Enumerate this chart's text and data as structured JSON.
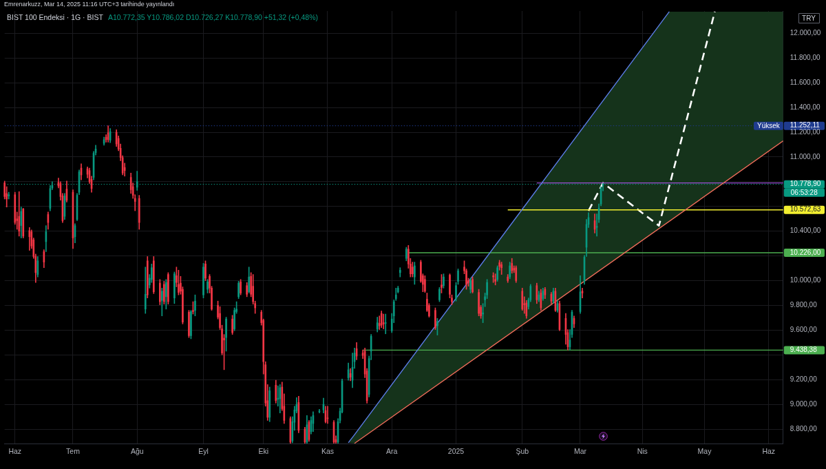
{
  "chart_data": {
    "type": "candlestick",
    "title": "BIST 100 Endeksi · 1G · BIST",
    "subtitle": "A10.772,35 Y10.786,02 D10.726,27 K10.778,90 +51,32 (+0,48%)",
    "ylabel": "TRY",
    "annotations": [
      "Emrenarkuzz, Mar 14, 2025 11:16 UTC+3 tarihinde yayınlandı",
      "06:53:28"
    ],
    "x": [
      "2024-05-29",
      "2024-05-30",
      "2024-05-31",
      "2024-06-03",
      "2024-06-04",
      "2024-06-05",
      "2024-06-06",
      "2024-06-07",
      "2024-06-10",
      "2024-06-11",
      "2024-06-12",
      "2024-06-13",
      "2024-06-14",
      "2024-06-17",
      "2024-06-18",
      "2024-06-19",
      "2024-06-20",
      "2024-06-21",
      "2024-06-24",
      "2024-06-25",
      "2024-06-26",
      "2024-06-27",
      "2024-06-28",
      "2024-07-01",
      "2024-07-02",
      "2024-07-03",
      "2024-07-04",
      "2024-07-05",
      "2024-07-08",
      "2024-07-09",
      "2024-07-10",
      "2024-07-11",
      "2024-07-12",
      "2024-07-16",
      "2024-07-17",
      "2024-07-18",
      "2024-07-19",
      "2024-07-22",
      "2024-07-23",
      "2024-07-24",
      "2024-07-25",
      "2024-07-26",
      "2024-07-29",
      "2024-07-30",
      "2024-07-31",
      "2024-08-01",
      "2024-08-02",
      "2024-08-05",
      "2024-08-06",
      "2024-08-07",
      "2024-08-08",
      "2024-08-09",
      "2024-08-12",
      "2024-08-13",
      "2024-08-14",
      "2024-08-15",
      "2024-08-16",
      "2024-08-19",
      "2024-08-20",
      "2024-08-21",
      "2024-08-22",
      "2024-08-23",
      "2024-08-26",
      "2024-08-27",
      "2024-08-28",
      "2024-08-29",
      "2024-09-02",
      "2024-09-03",
      "2024-09-04",
      "2024-09-05",
      "2024-09-06",
      "2024-09-09",
      "2024-09-10",
      "2024-09-11",
      "2024-09-12",
      "2024-09-13",
      "2024-09-16",
      "2024-09-17",
      "2024-09-18",
      "2024-09-19",
      "2024-09-20",
      "2024-09-23",
      "2024-09-24",
      "2024-09-25",
      "2024-09-26",
      "2024-09-27",
      "2024-09-30",
      "2024-10-01",
      "2024-10-02",
      "2024-10-03",
      "2024-10-04",
      "2024-10-07",
      "2024-10-08",
      "2024-10-09",
      "2024-10-10",
      "2024-10-11",
      "2024-10-14",
      "2024-10-15",
      "2024-10-16",
      "2024-10-17",
      "2024-10-18",
      "2024-10-21",
      "2024-10-22",
      "2024-10-23",
      "2024-10-24",
      "2024-10-25",
      "2024-10-28",
      "2024-10-30",
      "2024-10-31",
      "2024-11-01",
      "2024-11-04",
      "2024-11-05",
      "2024-11-06",
      "2024-11-07",
      "2024-11-08",
      "2024-11-11",
      "2024-11-12",
      "2024-11-13",
      "2024-11-14",
      "2024-11-15",
      "2024-11-18",
      "2024-11-19",
      "2024-11-20",
      "2024-11-21",
      "2024-11-22",
      "2024-11-25",
      "2024-11-26",
      "2024-11-27",
      "2024-11-28",
      "2024-11-29",
      "2024-12-02",
      "2024-12-03",
      "2024-12-04",
      "2024-12-05",
      "2024-12-06",
      "2024-12-09",
      "2024-12-10",
      "2024-12-11",
      "2024-12-12",
      "2024-12-13",
      "2024-12-16",
      "2024-12-17",
      "2024-12-18",
      "2024-12-19",
      "2024-12-20",
      "2024-12-23",
      "2024-12-24",
      "2024-12-25",
      "2024-12-26",
      "2024-12-27",
      "2024-12-30",
      "2024-12-31",
      "2025-01-02",
      "2025-01-03",
      "2025-01-06",
      "2025-01-07",
      "2025-01-08",
      "2025-01-09",
      "2025-01-10",
      "2025-01-13",
      "2025-01-14",
      "2025-01-15",
      "2025-01-16",
      "2025-01-17",
      "2025-01-20",
      "2025-01-21",
      "2025-01-22",
      "2025-01-23",
      "2025-01-24",
      "2025-01-27",
      "2025-01-28",
      "2025-01-29",
      "2025-01-30",
      "2025-01-31",
      "2025-02-03",
      "2025-02-04",
      "2025-02-05",
      "2025-02-06",
      "2025-02-07",
      "2025-02-10",
      "2025-02-11",
      "2025-02-12",
      "2025-02-13",
      "2025-02-14",
      "2025-02-17",
      "2025-02-18",
      "2025-02-19",
      "2025-02-20",
      "2025-02-21",
      "2025-02-24",
      "2025-02-25",
      "2025-02-26",
      "2025-02-27",
      "2025-02-28",
      "2025-03-03",
      "2025-03-04",
      "2025-03-05",
      "2025-03-06",
      "2025-03-07",
      "2025-03-10",
      "2025-03-11",
      "2025-03-12",
      "2025-03-13",
      "2025-03-14"
    ],
    "ohlc": [
      [
        10790,
        10805,
        10660,
        10680
      ],
      [
        10705,
        10760,
        10595,
        10660
      ],
      [
        10685,
        10715,
        10660,
        10695
      ],
      [
        10695,
        10715,
        10455,
        10470
      ],
      [
        10500,
        10555,
        10415,
        10485
      ],
      [
        10520,
        10720,
        10360,
        10400
      ],
      [
        10445,
        10595,
        10345,
        10560
      ],
      [
        10580,
        10585,
        10345,
        10360
      ],
      [
        10405,
        10430,
        10245,
        10355
      ],
      [
        10395,
        10410,
        10260,
        10280
      ],
      [
        10330,
        10345,
        10180,
        10195
      ],
      [
        10195,
        10215,
        9985,
        10065
      ],
      [
        10050,
        10195,
        10030,
        10160
      ],
      [
        10235,
        10250,
        10105,
        10150
      ],
      [
        10315,
        10445,
        10235,
        10395
      ],
      [
        10535,
        10555,
        10415,
        10470
      ],
      [
        10585,
        10770,
        10565,
        10745
      ],
      [
        10750,
        10800,
        10735,
        10770
      ],
      [
        10795,
        10830,
        10750,
        10765
      ],
      [
        10785,
        10800,
        10650,
        10680
      ],
      [
        10685,
        10705,
        10470,
        10485
      ],
      [
        10520,
        10705,
        10495,
        10685
      ],
      [
        10740,
        10805,
        10635,
        10650
      ],
      [
        10715,
        10735,
        10260,
        10345
      ],
      [
        10355,
        10460,
        10305,
        10445
      ],
      [
        10495,
        10705,
        10485,
        10690
      ],
      [
        10715,
        10895,
        10695,
        10880
      ],
      [
        10910,
        10945,
        10815,
        10855
      ],
      [
        10905,
        10920,
        10830,
        10860
      ],
      [
        10890,
        10910,
        10785,
        10800
      ],
      [
        10820,
        10845,
        10715,
        10745
      ],
      [
        10835,
        11045,
        10815,
        11030
      ],
      [
        11035,
        11095,
        11015,
        11065
      ],
      [
        11110,
        11160,
        11095,
        11140
      ],
      [
        11160,
        11180,
        11120,
        11140
      ],
      [
        11195,
        11252.11,
        11120,
        11140
      ],
      [
        11135,
        11230,
        11115,
        11205
      ],
      [
        11200,
        11220,
        11085,
        11105
      ],
      [
        11150,
        11170,
        11050,
        11065
      ],
      [
        11070,
        11105,
        10970,
        10995
      ],
      [
        10995,
        11010,
        10855,
        10870
      ],
      [
        10915,
        10950,
        10845,
        10890
      ],
      [
        10835,
        10870,
        10705,
        10735
      ],
      [
        10760,
        10790,
        10665,
        10690
      ],
      [
        10665,
        10695,
        10565,
        10640
      ],
      [
        10755,
        10885,
        10730,
        10800
      ],
      [
        10665,
        10690,
        10415,
        10470
      ],
      [
        9770,
        10110,
        9735,
        9890
      ],
      [
        10160,
        10195,
        9860,
        9885
      ],
      [
        9965,
        10050,
        9940,
        10020
      ],
      [
        10010,
        10135,
        9985,
        10105
      ],
      [
        10160,
        10195,
        9895,
        9910
      ],
      [
        9980,
        10010,
        9805,
        9830
      ],
      [
        9840,
        9940,
        9715,
        9915
      ],
      [
        9970,
        9995,
        9810,
        9830
      ],
      [
        9870,
        10010,
        9770,
        9985
      ],
      [
        10050,
        10065,
        9810,
        9830
      ],
      [
        9860,
        10070,
        9815,
        10055
      ],
      [
        10040,
        10110,
        9950,
        9985
      ],
      [
        9970,
        10085,
        9885,
        9905
      ],
      [
        9980,
        10035,
        9890,
        9915
      ],
      [
        9930,
        9950,
        9650,
        9665
      ],
      [
        9745,
        9760,
        9540,
        9555
      ],
      [
        9555,
        9760,
        9530,
        9750
      ],
      [
        9760,
        9830,
        9730,
        9750
      ],
      [
        9760,
        9885,
        9715,
        9835
      ],
      [
        9885,
        10140,
        9860,
        10110
      ],
      [
        10135,
        10160,
        10000,
        10020
      ],
      [
        9930,
        10010,
        9900,
        9990
      ],
      [
        10035,
        10050,
        9900,
        9940
      ],
      [
        9940,
        9955,
        9760,
        9770
      ],
      [
        9800,
        9835,
        9690,
        9705
      ],
      [
        9735,
        9790,
        9605,
        9620
      ],
      [
        9610,
        9640,
        9400,
        9415
      ],
      [
        9535,
        9565,
        9280,
        9520
      ],
      [
        9540,
        9705,
        9430,
        9690
      ],
      [
        9690,
        9720,
        9565,
        9580
      ],
      [
        9610,
        9780,
        9595,
        9760
      ],
      [
        9750,
        9830,
        9735,
        9770
      ],
      [
        9870,
        9995,
        9855,
        9980
      ],
      [
        9990,
        10010,
        9885,
        9900
      ],
      [
        9960,
        9985,
        9870,
        9890
      ],
      [
        9910,
        10110,
        9900,
        10030
      ],
      [
        10035,
        10065,
        9870,
        9890
      ],
      [
        9955,
        10050,
        9810,
        9830
      ],
      [
        9815,
        9835,
        9735,
        9780
      ],
      [
        9745,
        9760,
        9640,
        9660
      ],
      [
        9680,
        9690,
        9245,
        9345
      ],
      [
        9320,
        9345,
        8985,
        9010
      ],
      [
        9030,
        9160,
        8870,
        8895
      ],
      [
        8895,
        9140,
        8860,
        9110
      ],
      [
        9155,
        9195,
        9010,
        9030
      ],
      [
        9040,
        9150,
        8985,
        9050
      ],
      [
        9045,
        9160,
        8930,
        9135
      ],
      [
        9140,
        9180,
        8950,
        8965
      ],
      [
        8985,
        9085,
        8845,
        8870
      ],
      [
        8885,
        8900,
        8685,
        8695
      ],
      [
        8705,
        8900,
        8690,
        8860
      ],
      [
        8855,
        8985,
        8790,
        8955
      ],
      [
        8945,
        9055,
        8930,
        9000
      ],
      [
        9015,
        9065,
        8770,
        8790
      ],
      [
        8800,
        8815,
        8685,
        8695
      ],
      [
        8695,
        8910,
        8685,
        8835
      ],
      [
        8855,
        8870,
        8700,
        8715
      ],
      [
        8780,
        8900,
        8760,
        8870
      ],
      [
        8845,
        8940,
        8780,
        8910
      ],
      [
        8940,
        8960,
        8930,
        8945
      ],
      [
        8955,
        9050,
        8930,
        9000
      ],
      [
        8950,
        8985,
        8850,
        8860
      ],
      [
        8890,
        8985,
        8845,
        8885
      ],
      [
        8855,
        8870,
        8685,
        8695
      ],
      [
        8715,
        8745,
        8685,
        8695
      ],
      [
        8695,
        8885,
        8685,
        8860
      ],
      [
        8870,
        8970,
        8850,
        8945
      ],
      [
        8940,
        9205,
        8930,
        9190
      ],
      [
        9215,
        9335,
        9195,
        9280
      ],
      [
        9250,
        9290,
        9190,
        9220
      ],
      [
        9195,
        9415,
        9135,
        9300
      ],
      [
        9345,
        9455,
        9290,
        9415
      ],
      [
        9450,
        9500,
        9360,
        9390
      ],
      [
        9415,
        9440,
        9370,
        9395
      ],
      [
        9430,
        9455,
        9215,
        9245
      ],
      [
        9270,
        9290,
        9010,
        9030
      ],
      [
        9080,
        9390,
        9060,
        9370
      ],
      [
        9430,
        9565,
        9360,
        9550
      ],
      [
        9610,
        9705,
        9585,
        9660
      ],
      [
        9655,
        9715,
        9605,
        9635
      ],
      [
        9735,
        9755,
        9620,
        9640
      ],
      [
        9660,
        9730,
        9610,
        9650
      ],
      [
        9655,
        9730,
        9570,
        9660
      ],
      [
        9595,
        9735,
        9580,
        9690
      ],
      [
        9715,
        9845,
        9660,
        9830
      ],
      [
        9855,
        9940,
        9840,
        9885
      ],
      [
        9910,
        9955,
        9900,
        9940
      ],
      [
        10065,
        10105,
        10030,
        10085
      ],
      [
        10180,
        10270,
        10160,
        10255
      ],
      [
        10255,
        10285,
        10100,
        10135
      ],
      [
        10135,
        10180,
        10030,
        10055
      ],
      [
        10110,
        10150,
        10030,
        10055
      ],
      [
        10030,
        10150,
        9970,
        10120
      ],
      [
        10150,
        10165,
        9985,
        9995
      ],
      [
        10040,
        10055,
        9910,
        9970
      ],
      [
        10010,
        10040,
        9905,
        9915
      ],
      [
        9850,
        9900,
        9750,
        9760
      ],
      [
        9800,
        9815,
        9705,
        9715
      ],
      [
        9760,
        9780,
        9605,
        9620
      ],
      [
        9635,
        9695,
        9560,
        9670
      ],
      [
        9845,
        9945,
        9830,
        9930
      ],
      [
        9965,
        10050,
        9900,
        9945
      ],
      [
        9960,
        10055,
        9940,
        10030
      ],
      [
        10045,
        10055,
        9860,
        9890
      ],
      [
        9860,
        9885,
        9805,
        9830
      ],
      [
        9855,
        9985,
        9835,
        9960
      ],
      [
        9995,
        10095,
        9970,
        10080
      ],
      [
        10110,
        10160,
        10055,
        10080
      ],
      [
        10080,
        10095,
        9930,
        9970
      ],
      [
        10000,
        10020,
        9955,
        9985
      ],
      [
        9930,
        10020,
        9900,
        10000
      ],
      [
        10010,
        10030,
        9900,
        9910
      ],
      [
        9905,
        9930,
        9715,
        9735
      ],
      [
        9785,
        9800,
        9695,
        9715
      ],
      [
        9730,
        9815,
        9660,
        9740
      ],
      [
        9845,
        9900,
        9790,
        9870
      ],
      [
        9885,
        10010,
        9855,
        9985
      ],
      [
        10040,
        10065,
        9985,
        10030
      ],
      [
        10010,
        10055,
        9965,
        9995
      ],
      [
        10010,
        10120,
        9995,
        10105
      ],
      [
        10145,
        10165,
        10085,
        10115
      ],
      [
        10130,
        10150,
        10050,
        10105
      ],
      [
        10030,
        10050,
        9985,
        10000
      ],
      [
        10030,
        10150,
        10015,
        10120
      ],
      [
        10140,
        10180,
        10060,
        10080
      ],
      [
        10100,
        10120,
        10065,
        10085
      ],
      [
        10105,
        10120,
        9985,
        10000
      ],
      [
        9915,
        9940,
        9760,
        9770
      ],
      [
        9815,
        9870,
        9735,
        9805
      ],
      [
        9820,
        9840,
        9695,
        9715
      ],
      [
        9790,
        9860,
        9770,
        9845
      ],
      [
        9845,
        9970,
        9830,
        9955
      ],
      [
        9960,
        9980,
        9815,
        9845
      ],
      [
        9845,
        9915,
        9830,
        9885
      ],
      [
        9900,
        9930,
        9760,
        9780
      ],
      [
        9855,
        9940,
        9840,
        9915
      ],
      [
        9930,
        9945,
        9855,
        9885
      ],
      [
        9890,
        9905,
        9815,
        9835
      ],
      [
        9835,
        9940,
        9815,
        9915
      ],
      [
        9915,
        9940,
        9750,
        9760
      ],
      [
        9760,
        9840,
        9745,
        9815
      ],
      [
        9815,
        9835,
        9595,
        9605
      ],
      [
        9695,
        9735,
        9485,
        9565
      ],
      [
        9580,
        9605,
        9440,
        9465
      ],
      [
        9465,
        9605,
        9440,
        9520
      ],
      [
        9565,
        9760,
        9540,
        9745
      ],
      [
        9695,
        9715,
        9620,
        9650
      ],
      [
        9750,
        10040,
        9735,
        9910
      ],
      [
        9915,
        9940,
        9860,
        9900
      ],
      [
        9995,
        10205,
        9970,
        10190
      ],
      [
        10270,
        10495,
        10195,
        10455
      ],
      [
        10455,
        10550,
        10430,
        10510
      ],
      [
        10485,
        10540,
        10385,
        10415
      ],
      [
        10430,
        10540,
        10360,
        10440
      ],
      [
        10495,
        10620,
        10470,
        10585
      ],
      [
        10620,
        10760,
        10605,
        10745
      ],
      [
        10772.35,
        10786.02,
        10726.27,
        10778.9
      ]
    ],
    "colors": [
      "#f23645",
      "#f23645",
      "#089981",
      "#f23645",
      "#f23645",
      "#f23645",
      "#089981",
      "#f23645",
      "#f23645",
      "#f23645",
      "#f23645",
      "#f23645",
      "#089981",
      "#f23645",
      "#089981",
      "#f23645",
      "#089981",
      "#089981",
      "#f23645",
      "#f23645",
      "#f23645",
      "#089981",
      "#f23645",
      "#f23645",
      "#089981",
      "#089981",
      "#089981",
      "#f23645",
      "#f23645",
      "#f23645",
      "#f23645",
      "#089981",
      "#089981",
      "#089981",
      "#f23645",
      "#f23645",
      "#089981",
      "#f23645",
      "#f23645",
      "#f23645",
      "#f23645",
      "#f23645",
      "#f23645",
      "#f23645",
      "#f23645",
      "#089981",
      "#f23645",
      "#089981",
      "#f23645",
      "#089981",
      "#089981",
      "#f23645",
      "#f23645",
      "#089981",
      "#f23645",
      "#089981",
      "#f23645",
      "#089981",
      "#f23645",
      "#f23645",
      "#f23645",
      "#f23645",
      "#f23645",
      "#089981",
      "#f23645",
      "#089981",
      "#089981",
      "#f23645",
      "#089981",
      "#f23645",
      "#f23645",
      "#f23645",
      "#f23645",
      "#f23645",
      "#f23645",
      "#089981",
      "#f23645",
      "#089981",
      "#089981",
      "#089981",
      "#f23645",
      "#f23645",
      "#089981",
      "#f23645",
      "#f23645",
      "#f23645",
      "#f23645",
      "#f23645",
      "#f23645",
      "#f23645",
      "#089981",
      "#f23645",
      "#089981",
      "#089981",
      "#f23645",
      "#f23645",
      "#f23645",
      "#089981",
      "#089981",
      "#089981",
      "#f23645",
      "#f23645",
      "#089981",
      "#f23645",
      "#089981",
      "#089981",
      "#089981",
      "#089981",
      "#f23645",
      "#f23645",
      "#f23645",
      "#f23645",
      "#089981",
      "#089981",
      "#089981",
      "#089981",
      "#f23645",
      "#089981",
      "#089981",
      "#f23645",
      "#f23645",
      "#f23645",
      "#f23645",
      "#089981",
      "#089981",
      "#089981",
      "#f23645",
      "#f23645",
      "#f23645",
      "#089981",
      "#089981",
      "#089981",
      "#089981",
      "#089981",
      "#089981",
      "#089981",
      "#f23645",
      "#f23645",
      "#f23645",
      "#089981",
      "#f23645",
      "#f23645",
      "#f23645",
      "#f23645",
      "#f23645",
      "#f23645",
      "#089981",
      "#089981",
      "#f23645",
      "#089981",
      "#f23645",
      "#f23645",
      "#089981",
      "#089981",
      "#f23645",
      "#f23645",
      "#f23645",
      "#089981",
      "#f23645",
      "#f23645",
      "#f23645",
      "#089981",
      "#089981",
      "#089981",
      "#f23645",
      "#f23645",
      "#089981",
      "#f23645",
      "#f23645",
      "#f23645",
      "#089981",
      "#f23645",
      "#f23645",
      "#f23645",
      "#f23645",
      "#f23645",
      "#f23645",
      "#089981",
      "#089981",
      "#f23645",
      "#089981",
      "#f23645",
      "#089981",
      "#f23645",
      "#f23645",
      "#089981",
      "#f23645",
      "#089981",
      "#f23645",
      "#f23645",
      "#f23645",
      "#089981",
      "#089981",
      "#f23645",
      "#089981",
      "#f23645",
      "#089981",
      "#089981",
      "#089981",
      "#f23645",
      "#089981",
      "#089981",
      "#089981",
      "#089981"
    ],
    "xlim": [
      "2024-05-29",
      "2025-06-09"
    ],
    "xticks": [
      {
        "value": "2024-06-03",
        "label": "Haz"
      },
      {
        "value": "2024-07-01",
        "label": "Tem"
      },
      {
        "value": "2024-08-01",
        "label": "Ağu"
      },
      {
        "value": "2024-09-02",
        "label": "Eyl"
      },
      {
        "value": "2024-10-01",
        "label": "Eki"
      },
      {
        "value": "2024-11-01",
        "label": "Kas"
      },
      {
        "value": "2024-12-02",
        "label": "Ara"
      },
      {
        "value": "2025-01-02",
        "label": "2025"
      },
      {
        "value": "2025-02-03",
        "label": "Şub"
      },
      {
        "value": "2025-03-03",
        "label": "Mar"
      },
      {
        "value": "2025-04-02",
        "label": "Nis"
      },
      {
        "value": "2025-05-02",
        "label": "May"
      },
      {
        "value": "2025-06-02",
        "label": "Haz"
      }
    ],
    "ylim": [
      8680,
      12180
    ],
    "yticks": [
      {
        "value": 8800,
        "label": "8.800,00"
      },
      {
        "value": 9000,
        "label": "9.000,00"
      },
      {
        "value": 9200,
        "label": "9.200,00"
      },
      {
        "value": 9400,
        "label": null
      },
      {
        "value": 9438.38,
        "label": "9.438,38"
      },
      {
        "value": 9600,
        "label": "9.600,00"
      },
      {
        "value": 9800,
        "label": "9.800,00"
      },
      {
        "value": 10000,
        "label": "10.000,00"
      },
      {
        "value": 10200,
        "label": null
      },
      {
        "value": 10226,
        "label": "10.226,00"
      },
      {
        "value": 10400,
        "label": "10.400,00"
      },
      {
        "value": 10572.63,
        "label": "10.572,63"
      },
      {
        "value": 10600,
        "label": null
      },
      {
        "value": 10778.9,
        "label": "10.778,90"
      },
      {
        "value": 10800,
        "label": null
      },
      {
        "value": 11000,
        "label": "11.000,00"
      },
      {
        "value": 11200,
        "label": "11.200,00"
      },
      {
        "value": 11252.11,
        "label": "11.252,11"
      },
      {
        "value": 11400,
        "label": "11.400,00"
      },
      {
        "value": 11600,
        "label": "11.600,00"
      },
      {
        "value": 11800,
        "label": "11.800,00"
      },
      {
        "value": 12000,
        "label": "12.000,00"
      }
    ],
    "grid": true,
    "series": [
      {
        "type": "line",
        "color": "#5b7ce6",
        "x": [
          "2024-11-11",
          "2024-11-14",
          "2025-04-15",
          "2025-06-09"
        ],
        "values": [
          8690,
          8755,
          12175,
          null
        ],
        "lower": [
          8690,
          8685,
          10480,
          11130
        ],
        "upper": [
          8690,
          8755,
          12175,
          12175
        ]
      },
      {
        "type": "line",
        "color": "#ef6c5a",
        "x": [
          "2024-11-14",
          "2025-06-09"
        ],
        "values": [
          8685,
          11130
        ]
      },
      {
        "type": "line",
        "color": "#9c4fd6",
        "x": [
          "2025-02-10",
          "2025-06-09"
        ],
        "values": [
          10790,
          10790
        ]
      },
      {
        "type": "line",
        "color": "#f2ee30",
        "x": [
          "2025-01-27",
          "2025-06-09"
        ],
        "values": [
          10572.63,
          10572.63
        ]
      },
      {
        "type": "line",
        "color": "#4caf50",
        "x": [
          "2024-12-10",
          "2025-06-09"
        ],
        "values": [
          10226,
          10226
        ]
      },
      {
        "type": "line",
        "color": "#4caf50",
        "x": [
          "2024-11-18",
          "2025-06-09"
        ],
        "values": [
          9438.38,
          9438.38
        ]
      },
      {
        "type": "line",
        "color": "#ffffff",
        "line_style": "dashed",
        "x": [
          "2025-03-07",
          "2025-03-14",
          "2025-04-10",
          "2025-05-07"
        ],
        "values": [
          10565,
          10790,
          10445,
          12175
        ]
      }
    ],
    "ref_lines": [
      {
        "axis": "y",
        "value": 11252.11,
        "label": "Yüksek",
        "color": "#1f3b8f",
        "line_style": "dotted"
      },
      {
        "axis": "y",
        "value": 10778.9,
        "color": "#089981",
        "line_style": "dotted"
      }
    ]
  }
}
